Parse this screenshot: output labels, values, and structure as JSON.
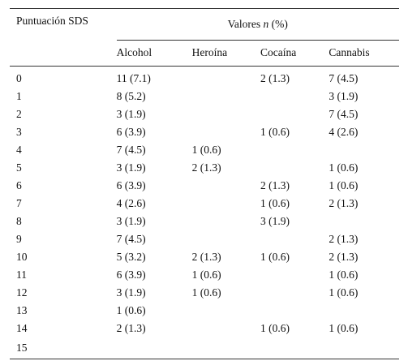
{
  "table": {
    "stub_header": "Puntuación SDS",
    "group_header_pre": "Valores ",
    "group_header_n": "n",
    "group_header_post": " (%)",
    "columns": [
      "Alcohol",
      "Heroína",
      "Cocaína",
      "Cannabis"
    ],
    "rows": [
      {
        "score": "0",
        "alcohol": "11 (7.1)",
        "heroina": "",
        "cocaina": "2 (1.3)",
        "cannabis": "7 (4.5)"
      },
      {
        "score": "1",
        "alcohol": "8 (5.2)",
        "heroina": "",
        "cocaina": "",
        "cannabis": "3 (1.9)"
      },
      {
        "score": "2",
        "alcohol": "3 (1.9)",
        "heroina": "",
        "cocaina": "",
        "cannabis": "7 (4.5)"
      },
      {
        "score": "3",
        "alcohol": "6 (3.9)",
        "heroina": "",
        "cocaina": "1 (0.6)",
        "cannabis": "4 (2.6)"
      },
      {
        "score": "4",
        "alcohol": "7 (4.5)",
        "heroina": "1 (0.6)",
        "cocaina": "",
        "cannabis": ""
      },
      {
        "score": "5",
        "alcohol": "3 (1.9)",
        "heroina": "2 (1.3)",
        "cocaina": "",
        "cannabis": "1 (0.6)"
      },
      {
        "score": "6",
        "alcohol": "6 (3.9)",
        "heroina": "",
        "cocaina": "2 (1.3)",
        "cannabis": "1 (0.6)"
      },
      {
        "score": "7",
        "alcohol": "4 (2.6)",
        "heroina": "",
        "cocaina": "1 (0.6)",
        "cannabis": "2 (1.3)"
      },
      {
        "score": "8",
        "alcohol": "3 (1.9)",
        "heroina": "",
        "cocaina": "3 (1.9)",
        "cannabis": ""
      },
      {
        "score": "9",
        "alcohol": "7 (4.5)",
        "heroina": "",
        "cocaina": "",
        "cannabis": "2 (1.3)"
      },
      {
        "score": "10",
        "alcohol": "5 (3.2)",
        "heroina": "2 (1.3)",
        "cocaina": "1 (0.6)",
        "cannabis": "2 (1.3)"
      },
      {
        "score": "11",
        "alcohol": "6 (3.9)",
        "heroina": "1 (0.6)",
        "cocaina": "",
        "cannabis": "1 (0.6)"
      },
      {
        "score": "12",
        "alcohol": "3 (1.9)",
        "heroina": "1 (0.6)",
        "cocaina": "",
        "cannabis": "1 (0.6)"
      },
      {
        "score": "13",
        "alcohol": "1 (0.6)",
        "heroina": "",
        "cocaina": "",
        "cannabis": ""
      },
      {
        "score": "14",
        "alcohol": "2 (1.3)",
        "heroina": "",
        "cocaina": "1 (0.6)",
        "cannabis": "1 (0.6)"
      },
      {
        "score": "15",
        "alcohol": "",
        "heroina": "",
        "cocaina": "",
        "cannabis": ""
      }
    ]
  }
}
